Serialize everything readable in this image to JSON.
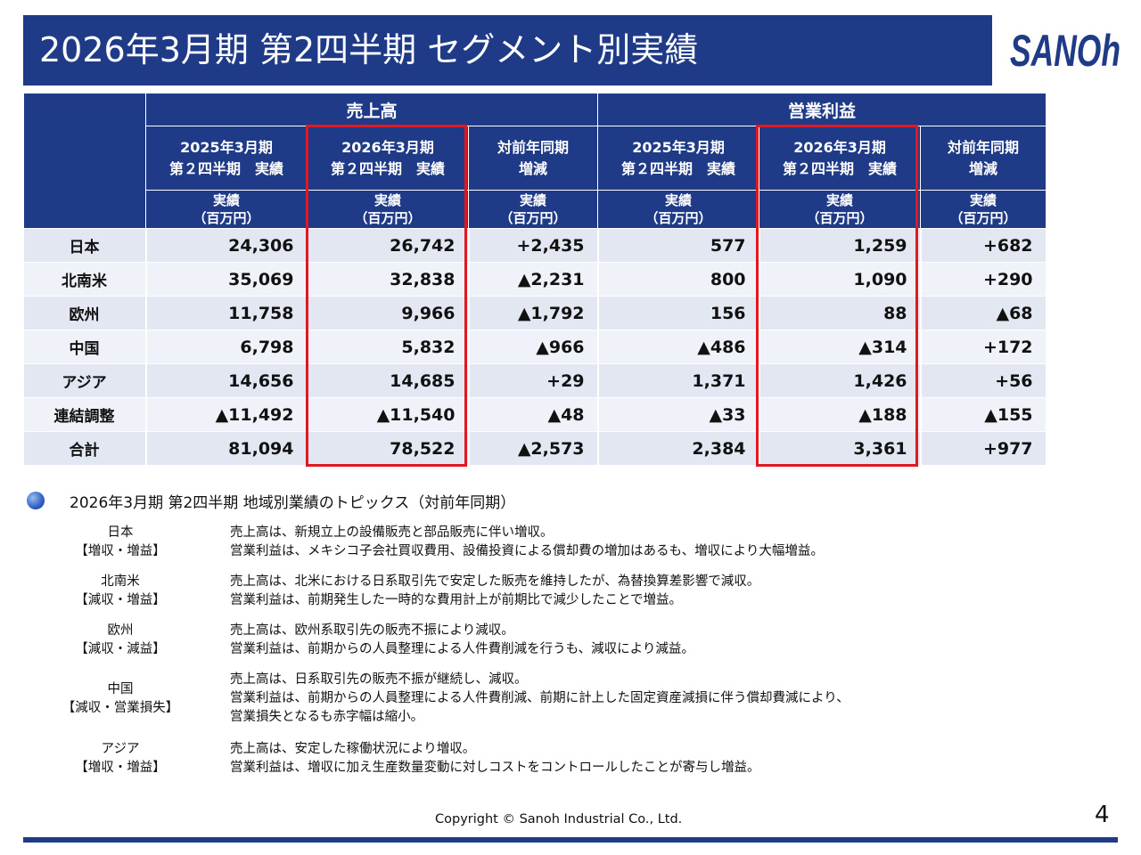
{
  "title": "2026年3月期 第2四半期 セグメント別実績",
  "logo_text": "SANOh",
  "table": {
    "group_sales": "売上高",
    "group_profit": "営業利益",
    "sub_prev_1": "2025年3月期",
    "sub_prev_2": "第２四半期　実績",
    "sub_curr_1": "2026年3月期",
    "sub_curr_2": "第２四半期　実績",
    "sub_diff_1": "対前年同期",
    "sub_diff_2": "増減",
    "unit_1": "実績",
    "unit_2": "（百万円）",
    "rows": [
      {
        "region": "日本",
        "s_prev": "24,306",
        "s_curr": "26,742",
        "s_diff": "+2,435",
        "p_prev": "577",
        "p_curr": "1,259",
        "p_diff": "+682"
      },
      {
        "region": "北南米",
        "s_prev": "35,069",
        "s_curr": "32,838",
        "s_diff": "▲2,231",
        "p_prev": "800",
        "p_curr": "1,090",
        "p_diff": "+290"
      },
      {
        "region": "欧州",
        "s_prev": "11,758",
        "s_curr": "9,966",
        "s_diff": "▲1,792",
        "p_prev": "156",
        "p_curr": "88",
        "p_diff": "▲68"
      },
      {
        "region": "中国",
        "s_prev": "6,798",
        "s_curr": "5,832",
        "s_diff": "▲966",
        "p_prev": "▲486",
        "p_curr": "▲314",
        "p_diff": "+172"
      },
      {
        "region": "アジア",
        "s_prev": "14,656",
        "s_curr": "14,685",
        "s_diff": "+29",
        "p_prev": "1,371",
        "p_curr": "1,426",
        "p_diff": "+56"
      },
      {
        "region": "連結調整",
        "s_prev": "▲11,492",
        "s_curr": "▲11,540",
        "s_diff": "▲48",
        "p_prev": "▲33",
        "p_curr": "▲188",
        "p_diff": "▲155"
      },
      {
        "region": "合計",
        "s_prev": "81,094",
        "s_curr": "78,522",
        "s_diff": "▲2,573",
        "p_prev": "2,384",
        "p_curr": "3,361",
        "p_diff": "+977"
      }
    ]
  },
  "topics": {
    "title": "2026年3月期 第2四半期 地域別業績のトピックス（対前年同期）",
    "items": [
      {
        "region": "日本",
        "tag": "【増収・増益】",
        "lines": [
          "売上高は、新規立上の設備販売と部品販売に伴い増収。",
          "営業利益は、メキシコ子会社買収費用、設備投資による償却費の増加はあるも、増収により大幅増益。"
        ]
      },
      {
        "region": "北南米",
        "tag": "【減収・増益】",
        "lines": [
          "売上高は、北米における日系取引先で安定した販売を維持したが、為替換算差影響で減収。",
          "営業利益は、前期発生した一時的な費用計上が前期比で減少したことで増益。"
        ]
      },
      {
        "region": "欧州",
        "tag": "【減収・減益】",
        "lines": [
          "売上高は、欧州系取引先の販売不振により減収。",
          "営業利益は、前期からの人員整理による人件費削減を行うも、減収により減益。"
        ]
      },
      {
        "region": "中国",
        "tag": "【減収・営業損失】",
        "lines": [
          "売上高は、日系取引先の販売不振が継続し、減収。",
          "営業利益は、前期からの人員整理による人件費削減、前期に計上した固定資産減損に伴う償却費減により、",
          "営業損失となるも赤字幅は縮小。"
        ]
      },
      {
        "region": "アジア",
        "tag": "【増収・増益】",
        "lines": [
          "売上高は、安定した稼働状況により増収。",
          "営業利益は、増収に加え生産数量変動に対しコストをコントロールしたことが寄与し増益。"
        ]
      }
    ]
  },
  "footer": "Copyright © Sanoh Industrial Co., Ltd.",
  "page_number": "4"
}
